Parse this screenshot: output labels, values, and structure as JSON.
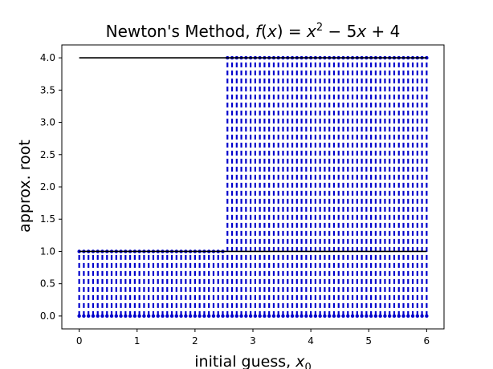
{
  "chart_data": {
    "type": "line",
    "title": {
      "prefix": "Newton's Method, ",
      "f": "f",
      "open_paren": "(",
      "var": "x",
      "close_paren": ")",
      "eq": " = ",
      "var2": "x",
      "exponent": "2",
      "rest": " − 5",
      "var3": "x",
      "tail": " + 4"
    },
    "xlabel": {
      "text": "initial guess, ",
      "var": "x",
      "sub": "0"
    },
    "ylabel": "approx. root",
    "xlim": [
      -0.3,
      6.3
    ],
    "ylim": [
      -0.2,
      4.2
    ],
    "xticks": [
      0,
      1,
      2,
      3,
      4,
      5,
      6
    ],
    "xtick_labels": [
      "0",
      "1",
      "2",
      "3",
      "4",
      "5",
      "6"
    ],
    "yticks": [
      0.0,
      0.5,
      1.0,
      1.5,
      2.0,
      2.5,
      3.0,
      3.5,
      4.0
    ],
    "ytick_labels": [
      "0.0",
      "0.5",
      "1.0",
      "1.5",
      "2.0",
      "2.5",
      "3.0",
      "3.5",
      "4.0"
    ],
    "grid": false,
    "legend": false,
    "roots": [
      1.0,
      4.0
    ],
    "reference_lines": [
      {
        "y": 4.0,
        "x_start": 0.0,
        "x_end": 6.0,
        "color": "#000000"
      },
      {
        "y": 1.0,
        "x_start": 0.0,
        "x_end": 6.0,
        "color": "#000000"
      }
    ],
    "series": [
      {
        "style": "dashed vertical segments with point markers at both ends",
        "x_start": 0.0,
        "x_end": 6.0,
        "n_points": 76,
        "threshold_x": 2.5,
        "y_bottom": 0.0,
        "y_top_below_threshold": 1.0,
        "y_top_at_or_above_threshold": 4.0,
        "color": "#0000cc"
      }
    ]
  }
}
